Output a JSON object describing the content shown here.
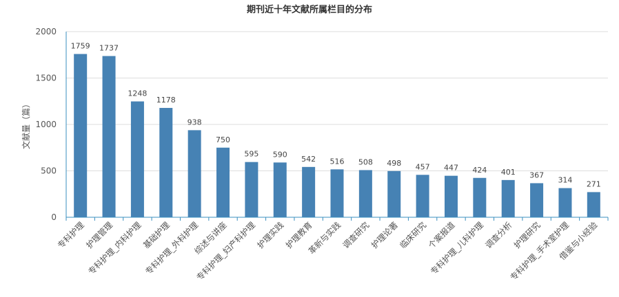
{
  "chart_data": {
    "type": "bar",
    "title": "期刊近十年文献所属栏目的分布",
    "ylabel": "文献量（篇）",
    "xlabel": "",
    "ylim": [
      0,
      2000
    ],
    "yticks": [
      0,
      500,
      1000,
      1500,
      2000
    ],
    "grid": true,
    "bar_color": "#4682b4",
    "categories": [
      "专科护理",
      "护理管理",
      "专科护理_内科护理",
      "基础护理",
      "专科护理_外科护理",
      "综述与讲座",
      "专科护理_妇产科护理",
      "护理实践",
      "护理教育",
      "革新与实践",
      "调查研究",
      "护理论著",
      "临床研究",
      "个案报道",
      "专科护理_儿科护理",
      "调查分析",
      "护理研究",
      "专科护理_手术室护理",
      "借鉴与小经验"
    ],
    "values": [
      1759,
      1737,
      1248,
      1178,
      938,
      750,
      595,
      590,
      542,
      516,
      508,
      498,
      457,
      447,
      424,
      401,
      367,
      314,
      271
    ]
  }
}
